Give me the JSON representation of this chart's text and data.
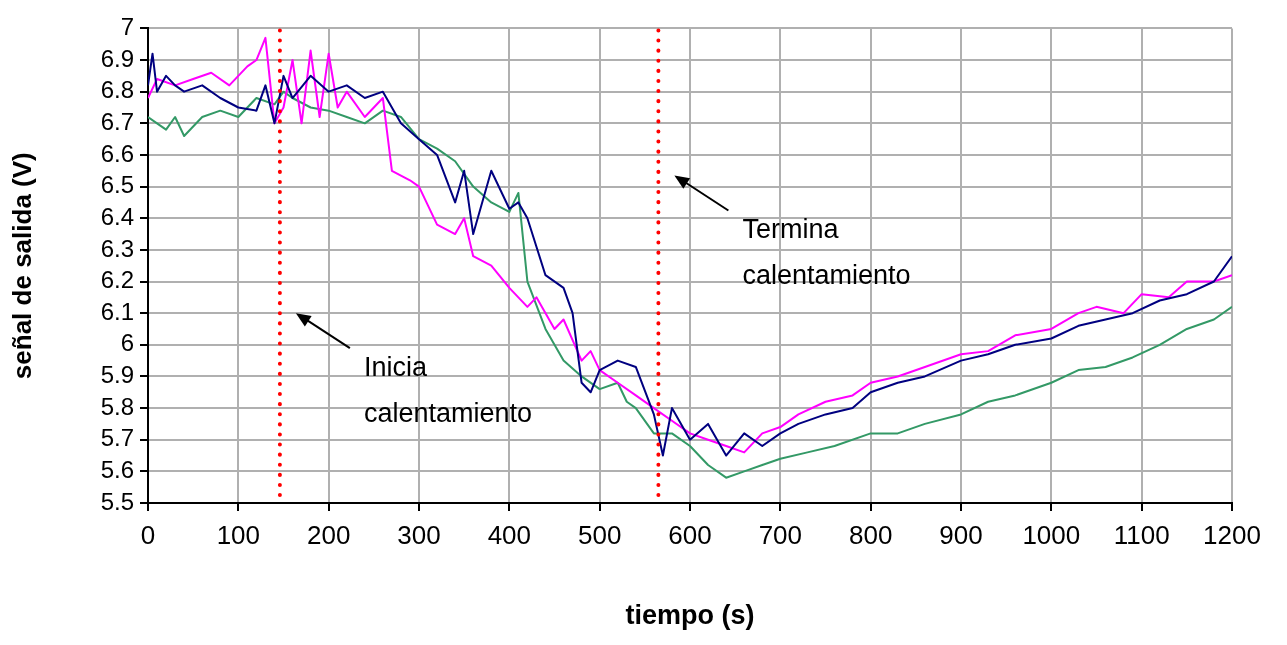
{
  "chart_data": {
    "type": "line",
    "xlabel": "tiempo (s)",
    "ylabel": "señal de salida (V)",
    "xlim": [
      0,
      1200
    ],
    "xticks": [
      0,
      100,
      200,
      300,
      400,
      500,
      600,
      700,
      800,
      900,
      1000,
      1100,
      1200
    ],
    "ylim": [
      5.5,
      7
    ],
    "yticks": [
      5.5,
      5.6,
      5.7,
      5.8,
      5.9,
      6,
      6.1,
      6.2,
      6.3,
      6.4,
      6.5,
      6.6,
      6.7,
      6.8,
      6.9,
      7
    ],
    "grid": true,
    "legend": false,
    "marker": "none",
    "line_style": "solid",
    "series": [
      {
        "color": "#000080",
        "x": [
          0,
          5,
          10,
          20,
          30,
          40,
          60,
          80,
          100,
          120,
          130,
          140,
          150,
          160,
          180,
          200,
          220,
          240,
          260,
          280,
          300,
          320,
          340,
          350,
          360,
          380,
          400,
          410,
          420,
          440,
          460,
          470,
          480,
          490,
          500,
          520,
          540,
          560,
          570,
          580,
          600,
          620,
          640,
          660,
          680,
          700,
          720,
          750,
          780,
          800,
          830,
          860,
          900,
          930,
          960,
          1000,
          1030,
          1060,
          1090,
          1120,
          1150,
          1180,
          1200
        ],
        "values": [
          6.82,
          6.92,
          6.8,
          6.85,
          6.82,
          6.8,
          6.82,
          6.78,
          6.75,
          6.74,
          6.82,
          6.7,
          6.85,
          6.78,
          6.85,
          6.8,
          6.82,
          6.78,
          6.8,
          6.7,
          6.65,
          6.6,
          6.45,
          6.55,
          6.35,
          6.55,
          6.43,
          6.45,
          6.4,
          6.22,
          6.18,
          6.1,
          5.88,
          5.85,
          5.92,
          5.95,
          5.93,
          5.78,
          5.65,
          5.8,
          5.7,
          5.75,
          5.65,
          5.72,
          5.68,
          5.72,
          5.75,
          5.78,
          5.8,
          5.85,
          5.88,
          5.9,
          5.95,
          5.97,
          6,
          6.02,
          6.06,
          6.08,
          6.1,
          6.14,
          6.16,
          6.2,
          6.28
        ]
      },
      {
        "color": "#ff00ff",
        "x": [
          0,
          10,
          30,
          50,
          70,
          90,
          110,
          120,
          130,
          140,
          150,
          160,
          170,
          180,
          190,
          200,
          210,
          220,
          240,
          250,
          260,
          270,
          290,
          300,
          320,
          340,
          350,
          360,
          380,
          400,
          420,
          430,
          450,
          460,
          480,
          490,
          500,
          520,
          540,
          560,
          580,
          600,
          620,
          640,
          660,
          680,
          700,
          720,
          750,
          780,
          800,
          830,
          860,
          900,
          930,
          960,
          1000,
          1030,
          1050,
          1080,
          1100,
          1130,
          1150,
          1180,
          1200
        ],
        "values": [
          6.78,
          6.84,
          6.82,
          6.84,
          6.86,
          6.82,
          6.88,
          6.9,
          6.97,
          6.7,
          6.75,
          6.9,
          6.7,
          6.93,
          6.72,
          6.92,
          6.75,
          6.8,
          6.72,
          6.75,
          6.78,
          6.55,
          6.52,
          6.5,
          6.38,
          6.35,
          6.4,
          6.28,
          6.25,
          6.18,
          6.12,
          6.15,
          6.05,
          6.08,
          5.95,
          5.98,
          5.92,
          5.88,
          5.84,
          5.8,
          5.76,
          5.72,
          5.7,
          5.68,
          5.66,
          5.72,
          5.74,
          5.78,
          5.82,
          5.84,
          5.88,
          5.9,
          5.93,
          5.97,
          5.98,
          6.03,
          6.05,
          6.1,
          6.12,
          6.1,
          6.16,
          6.15,
          6.2,
          6.2,
          6.22
        ]
      },
      {
        "color": "#339966",
        "x": [
          0,
          10,
          20,
          30,
          40,
          60,
          80,
          100,
          120,
          140,
          150,
          160,
          180,
          200,
          220,
          240,
          260,
          280,
          300,
          320,
          340,
          360,
          380,
          400,
          410,
          420,
          440,
          460,
          480,
          500,
          520,
          530,
          540,
          560,
          580,
          600,
          620,
          640,
          660,
          680,
          700,
          730,
          760,
          800,
          830,
          860,
          900,
          930,
          960,
          1000,
          1030,
          1060,
          1090,
          1120,
          1150,
          1180,
          1200
        ],
        "values": [
          6.72,
          6.7,
          6.68,
          6.72,
          6.66,
          6.72,
          6.74,
          6.72,
          6.78,
          6.76,
          6.8,
          6.78,
          6.75,
          6.74,
          6.72,
          6.7,
          6.74,
          6.72,
          6.65,
          6.62,
          6.58,
          6.5,
          6.45,
          6.42,
          6.48,
          6.2,
          6.05,
          5.95,
          5.9,
          5.86,
          5.88,
          5.82,
          5.8,
          5.72,
          5.72,
          5.68,
          5.62,
          5.58,
          5.6,
          5.62,
          5.64,
          5.66,
          5.68,
          5.72,
          5.72,
          5.75,
          5.78,
          5.82,
          5.84,
          5.88,
          5.92,
          5.93,
          5.96,
          6,
          6.05,
          6.08,
          6.12
        ]
      }
    ],
    "ref_lines": [
      {
        "axis": "x",
        "value": 146,
        "color": "#ff0000",
        "line_style": "dotted"
      },
      {
        "axis": "x",
        "value": 565,
        "color": "#ff0000",
        "line_style": "dotted"
      }
    ],
    "annotations": [
      "Inicia\ncalentamiento",
      "Termina\ncalentamiento"
    ]
  }
}
